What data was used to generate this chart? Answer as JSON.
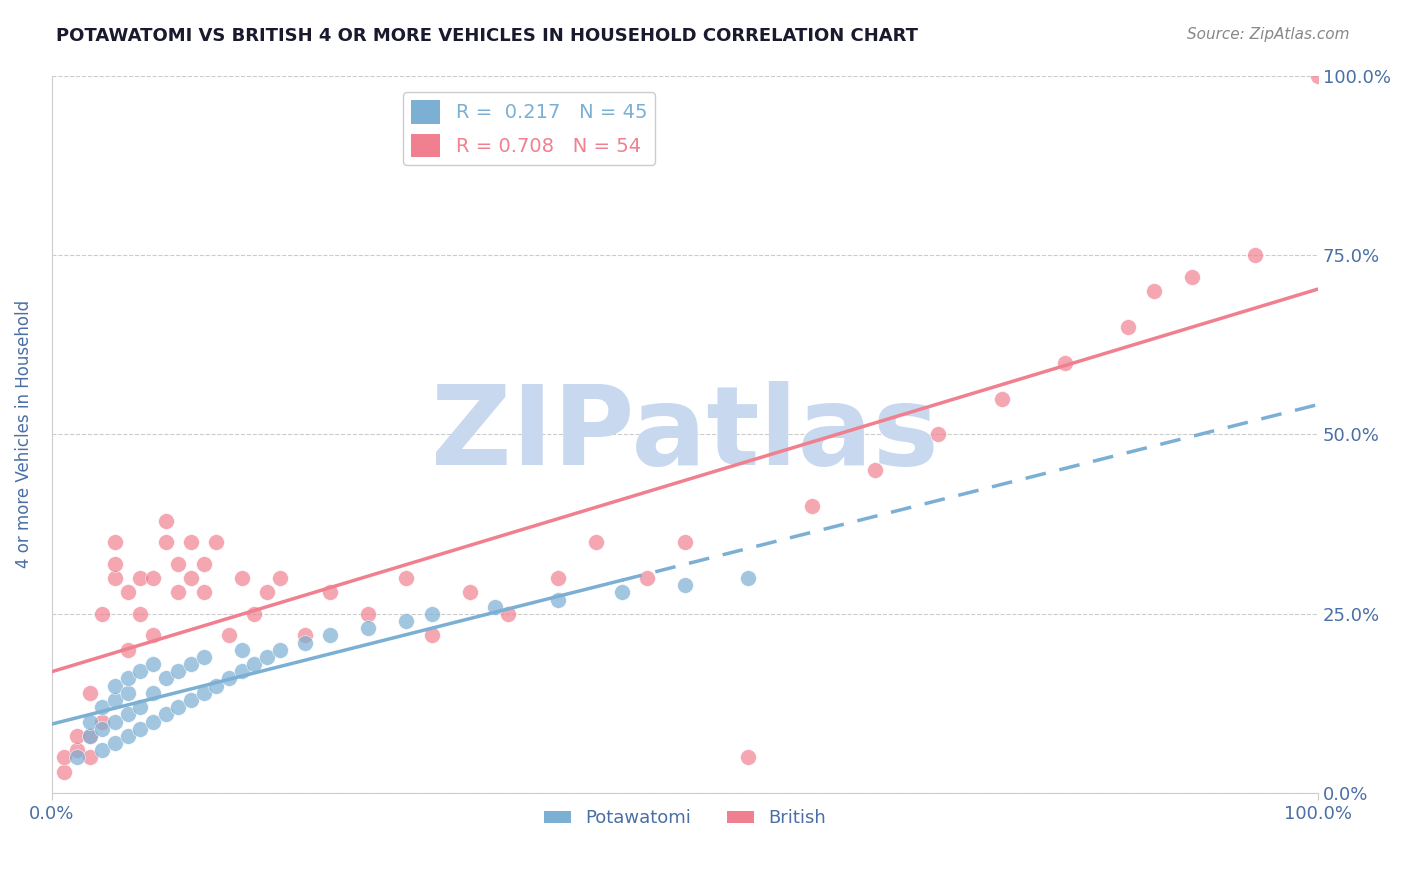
{
  "title": "POTAWATOMI VS BRITISH 4 OR MORE VEHICLES IN HOUSEHOLD CORRELATION CHART",
  "source_text": "Source: ZipAtlas.com",
  "ylabel": "4 or more Vehicles in Household",
  "legend_entries": [
    {
      "label": "R =  0.217   N = 45",
      "color": "#7bafd4"
    },
    {
      "label": "R = 0.708   N = 54",
      "color": "#f08090"
    }
  ],
  "potawatomi_color": "#7bafd4",
  "british_color": "#f08090",
  "watermark_zip": "ZIP",
  "watermark_atlas": "atlas",
  "watermark_color_zip": "#c8d8ee",
  "watermark_color_atlas": "#c8d8ee",
  "background_color": "#ffffff",
  "grid_color": "#cccccc",
  "title_color": "#1a1a2e",
  "tick_label_color": "#4a6fa5",
  "potawatomi_scatter_x": [
    0.02,
    0.03,
    0.03,
    0.04,
    0.04,
    0.04,
    0.05,
    0.05,
    0.05,
    0.05,
    0.06,
    0.06,
    0.06,
    0.06,
    0.07,
    0.07,
    0.07,
    0.08,
    0.08,
    0.08,
    0.09,
    0.09,
    0.1,
    0.1,
    0.11,
    0.11,
    0.12,
    0.12,
    0.13,
    0.14,
    0.15,
    0.15,
    0.16,
    0.17,
    0.18,
    0.2,
    0.22,
    0.25,
    0.28,
    0.3,
    0.35,
    0.4,
    0.45,
    0.5,
    0.55
  ],
  "potawatomi_scatter_y": [
    0.05,
    0.08,
    0.1,
    0.06,
    0.09,
    0.12,
    0.07,
    0.1,
    0.13,
    0.15,
    0.08,
    0.11,
    0.14,
    0.16,
    0.09,
    0.12,
    0.17,
    0.1,
    0.14,
    0.18,
    0.11,
    0.16,
    0.12,
    0.17,
    0.13,
    0.18,
    0.14,
    0.19,
    0.15,
    0.16,
    0.17,
    0.2,
    0.18,
    0.19,
    0.2,
    0.21,
    0.22,
    0.23,
    0.24,
    0.25,
    0.26,
    0.27,
    0.28,
    0.29,
    0.3
  ],
  "british_scatter_x": [
    0.01,
    0.01,
    0.02,
    0.02,
    0.03,
    0.03,
    0.03,
    0.04,
    0.04,
    0.05,
    0.05,
    0.05,
    0.06,
    0.06,
    0.07,
    0.07,
    0.08,
    0.08,
    0.09,
    0.09,
    0.1,
    0.1,
    0.11,
    0.11,
    0.12,
    0.12,
    0.13,
    0.14,
    0.15,
    0.16,
    0.17,
    0.18,
    0.2,
    0.22,
    0.25,
    0.28,
    0.3,
    0.33,
    0.36,
    0.4,
    0.43,
    0.47,
    0.5,
    0.55,
    0.6,
    0.65,
    0.7,
    0.75,
    0.8,
    0.85,
    0.87,
    0.9,
    0.95,
    1.0
  ],
  "british_scatter_y": [
    0.03,
    0.05,
    0.06,
    0.08,
    0.05,
    0.08,
    0.14,
    0.1,
    0.25,
    0.3,
    0.32,
    0.35,
    0.2,
    0.28,
    0.25,
    0.3,
    0.22,
    0.3,
    0.35,
    0.38,
    0.28,
    0.32,
    0.3,
    0.35,
    0.28,
    0.32,
    0.35,
    0.22,
    0.3,
    0.25,
    0.28,
    0.3,
    0.22,
    0.28,
    0.25,
    0.3,
    0.22,
    0.28,
    0.25,
    0.3,
    0.35,
    0.3,
    0.35,
    0.05,
    0.4,
    0.45,
    0.5,
    0.55,
    0.6,
    0.65,
    0.7,
    0.72,
    0.75,
    1.0
  ]
}
